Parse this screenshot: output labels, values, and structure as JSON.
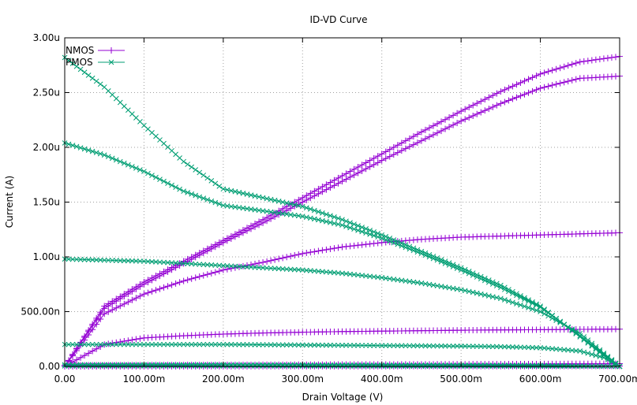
{
  "chart_data": {
    "type": "line",
    "title": "ID-VD Curve",
    "xlabel": "Drain Voltage (V)",
    "ylabel": "Current (A)",
    "xlim": [
      0,
      0.7
    ],
    "ylim": [
      0,
      3e-06
    ],
    "x_ticks": [
      0,
      0.1,
      0.2,
      0.3,
      0.4,
      0.5,
      0.6,
      0.7
    ],
    "x_tick_labels": [
      "0.00",
      "100.00m",
      "200.00m",
      "300.00m",
      "400.00m",
      "500.00m",
      "600.00m",
      "700.00m"
    ],
    "y_ticks": [
      0,
      5e-07,
      1e-06,
      1.5e-06,
      2e-06,
      2.5e-06,
      3e-06
    ],
    "y_tick_labels": [
      "0.00",
      "500.00n",
      "1.00u",
      "1.50u",
      "2.00u",
      "2.50u",
      "3.00u"
    ],
    "grid": true,
    "legend_position": "top-left",
    "series": [
      {
        "name": "NMOS",
        "color": "#9400d3",
        "marker": "plus",
        "curves": [
          {
            "x": [
              0,
              0.05,
              0.1,
              0.15,
              0.2,
              0.25,
              0.3,
              0.35,
              0.4,
              0.45,
              0.5,
              0.55,
              0.6,
              0.65,
              0.7
            ],
            "y": [
              0,
              5.5e-07,
              7.7e-07,
              9.6e-07,
              1.15e-06,
              1.34e-06,
              1.54e-06,
              1.74e-06,
              1.94e-06,
              2.14e-06,
              2.33e-06,
              2.51e-06,
              2.67e-06,
              2.78e-06,
              2.83e-06
            ]
          },
          {
            "x": [
              0,
              0.05,
              0.1,
              0.15,
              0.2,
              0.25,
              0.3,
              0.35,
              0.4,
              0.45,
              0.5,
              0.55,
              0.6,
              0.65,
              0.7
            ],
            "y": [
              0,
              5.3e-07,
              7.5e-07,
              9.4e-07,
              1.13e-06,
              1.31e-06,
              1.5e-06,
              1.69e-06,
              1.88e-06,
              2.06e-06,
              2.24e-06,
              2.4e-06,
              2.54e-06,
              2.63e-06,
              2.65e-06
            ]
          },
          {
            "x": [
              0,
              0.05,
              0.1,
              0.15,
              0.2,
              0.25,
              0.3,
              0.35,
              0.4,
              0.45,
              0.5,
              0.55,
              0.6,
              0.65,
              0.7
            ],
            "y": [
              0,
              4.8e-07,
              6.6e-07,
              7.8e-07,
              8.8e-07,
              9.5e-07,
              1.03e-06,
              1.09e-06,
              1.13e-06,
              1.16e-06,
              1.18e-06,
              1.19e-06,
              1.2e-06,
              1.21e-06,
              1.22e-06
            ]
          },
          {
            "x": [
              0,
              0.05,
              0.1,
              0.15,
              0.2,
              0.25,
              0.3,
              0.35,
              0.4,
              0.45,
              0.5,
              0.55,
              0.6,
              0.65,
              0.7
            ],
            "y": [
              0,
              2e-07,
              2.6e-07,
              2.8e-07,
              2.95e-07,
              3.05e-07,
              3.12e-07,
              3.18e-07,
              3.22e-07,
              3.26e-07,
              3.3e-07,
              3.33e-07,
              3.35e-07,
              3.38e-07,
              3.4e-07
            ]
          },
          {
            "x": [
              0,
              0.1,
              0.2,
              0.3,
              0.4,
              0.5,
              0.6,
              0.7
            ],
            "y": [
              1e-08,
              1.2e-08,
              1.4e-08,
              1.6e-08,
              1.8e-08,
              2e-08,
              2.2e-08,
              2.5e-08
            ]
          },
          {
            "x": [
              0,
              0.1,
              0.2,
              0.3,
              0.4,
              0.5,
              0.6,
              0.7
            ],
            "y": [
              0,
              1e-09,
              1e-09,
              2e-09,
              2e-09,
              3e-09,
              3e-09,
              4e-09
            ]
          }
        ]
      },
      {
        "name": "PMOS",
        "color": "#009e73",
        "marker": "cross",
        "curves": [
          {
            "x": [
              0,
              0.05,
              0.1,
              0.15,
              0.2,
              0.25,
              0.3,
              0.35,
              0.4,
              0.45,
              0.5,
              0.55,
              0.6,
              0.65,
              0.68,
              0.7
            ],
            "y": [
              2.82e-06,
              2.55e-06,
              2.2e-06,
              1.87e-06,
              1.62e-06,
              1.54e-06,
              1.46e-06,
              1.34e-06,
              1.2e-06,
              1.05e-06,
              9e-07,
              7.4e-07,
              5.5e-07,
              2.7e-07,
              1e-07,
              0
            ]
          },
          {
            "x": [
              0,
              0.05,
              0.1,
              0.15,
              0.2,
              0.25,
              0.3,
              0.35,
              0.4,
              0.45,
              0.5,
              0.55,
              0.6,
              0.65,
              0.68,
              0.7
            ],
            "y": [
              2.04e-06,
              1.93e-06,
              1.78e-06,
              1.6e-06,
              1.47e-06,
              1.42e-06,
              1.37e-06,
              1.29e-06,
              1.17e-06,
              1.03e-06,
              8.8e-07,
              7.2e-07,
              5.4e-07,
              2.8e-07,
              1.1e-07,
              0
            ]
          },
          {
            "x": [
              0,
              0.05,
              0.1,
              0.15,
              0.2,
              0.25,
              0.3,
              0.35,
              0.4,
              0.45,
              0.5,
              0.55,
              0.6,
              0.65,
              0.68,
              0.7
            ],
            "y": [
              9.8e-07,
              9.7e-07,
              9.6e-07,
              9.4e-07,
              9.2e-07,
              9e-07,
              8.8e-07,
              8.5e-07,
              8.1e-07,
              7.6e-07,
              7e-07,
              6.2e-07,
              5e-07,
              3e-07,
              1.2e-07,
              0
            ]
          },
          {
            "x": [
              0,
              0.1,
              0.2,
              0.3,
              0.4,
              0.5,
              0.55,
              0.6,
              0.65,
              0.68,
              0.7
            ],
            "y": [
              2e-07,
              2e-07,
              2e-07,
              1.95e-07,
              1.9e-07,
              1.85e-07,
              1.8e-07,
              1.7e-07,
              1.4e-07,
              8e-08,
              0
            ]
          },
          {
            "x": [
              0,
              0.1,
              0.2,
              0.3,
              0.4,
              0.5,
              0.6,
              0.7
            ],
            "y": [
              1.5e-08,
              1.5e-08,
              1.5e-08,
              1.4e-08,
              1.3e-08,
              1.2e-08,
              1e-08,
              0
            ]
          },
          {
            "x": [
              0,
              0.1,
              0.2,
              0.3,
              0.4,
              0.5,
              0.6,
              0.7
            ],
            "y": [
              3e-09,
              3e-09,
              3e-09,
              3e-09,
              2e-09,
              2e-09,
              1e-09,
              0
            ]
          }
        ]
      }
    ]
  }
}
